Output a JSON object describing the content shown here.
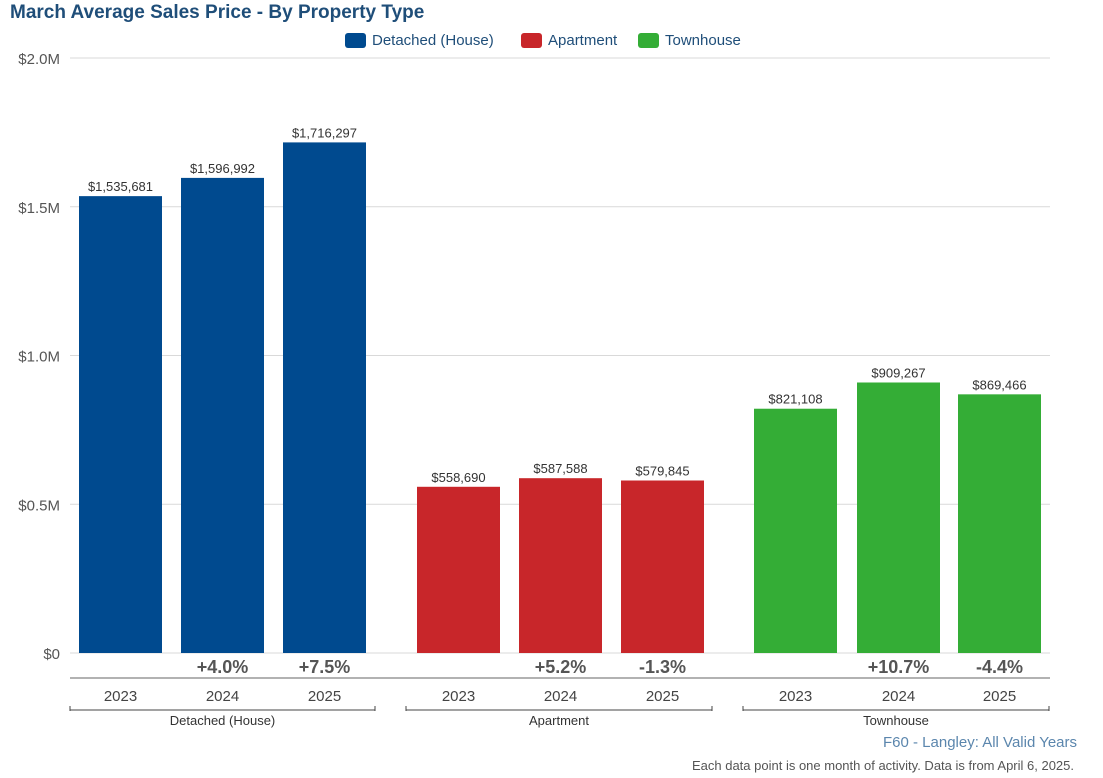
{
  "chart_data": {
    "type": "bar",
    "title": "March Average Sales Price - By Property Type",
    "y_ticks": [
      "$0",
      "$0.5M",
      "$1.0M",
      "$1.5M",
      "$2.0M"
    ],
    "ylim": [
      0,
      2000000
    ],
    "grid": true,
    "legend_position": "top-center",
    "groups": [
      {
        "name": "Detached (House)",
        "color": "#004a8f",
        "categories": [
          "2023",
          "2024",
          "2025"
        ],
        "values": [
          1535681,
          1596992,
          1716297
        ],
        "value_labels": [
          "$1,535,681",
          "$1,596,992",
          "$1,716,297"
        ],
        "changes": [
          "",
          "+4.0%",
          "+7.5%"
        ]
      },
      {
        "name": "Apartment",
        "color": "#c8262a",
        "categories": [
          "2023",
          "2024",
          "2025"
        ],
        "values": [
          558690,
          587588,
          579845
        ],
        "value_labels": [
          "$558,690",
          "$587,588",
          "$579,845"
        ],
        "changes": [
          "",
          "+5.2%",
          "-1.3%"
        ]
      },
      {
        "name": "Townhouse",
        "color": "#34ad36",
        "categories": [
          "2023",
          "2024",
          "2025"
        ],
        "values": [
          821108,
          909267,
          869466
        ],
        "value_labels": [
          "$821,108",
          "$909,267",
          "$869,466"
        ],
        "changes": [
          "",
          "+10.7%",
          "-4.4%"
        ]
      }
    ]
  },
  "footer": {
    "source": "F60 - Langley: All Valid Years",
    "note": "Each data point is one month of activity. Data is from April 6, 2025."
  }
}
